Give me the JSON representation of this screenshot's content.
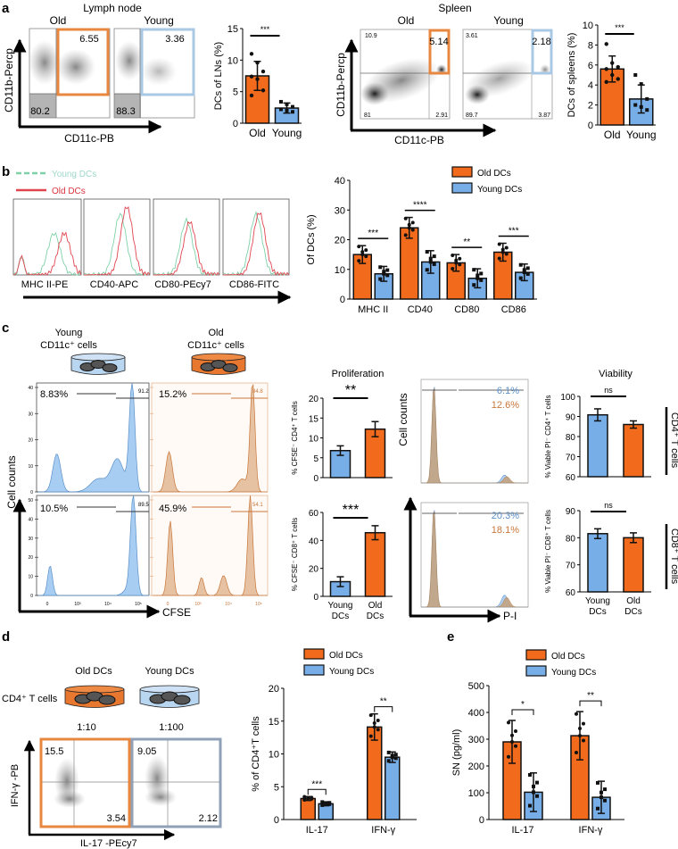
{
  "colors": {
    "old": "#f26a1b",
    "young": "#78aee8",
    "old_gate": "#e8873f",
    "young_gate": "#a9c8e4",
    "young_hist": "#a8cdf2",
    "old_hist": "#e6c1a2",
    "green": "#7fd1a7",
    "red": "#e0454f",
    "grey_gate": "#8fa0b7"
  },
  "panels": {
    "a": {
      "label": "a",
      "lymph": {
        "title": "Lymph node",
        "old": "Old",
        "young": "Young",
        "old_gate": "6.55",
        "old_ll": "80.2",
        "young_gate": "3.36",
        "young_ll": "88.3",
        "ylabel": "CD11b-Percp",
        "xlabel": "CD11c-PB"
      },
      "spleen": {
        "title": "Spleen",
        "old": "Old",
        "young": "Young",
        "old_gate": "5.14",
        "old_ul": "10.9",
        "old_ll": "81",
        "old_lr": "2.91",
        "young_gate": "2.18",
        "young_ul": "3.61",
        "young_ll": "89.7",
        "young_lr": "3.87",
        "ylabel": "CD11b-Percp",
        "xlabel": "CD11c-PB"
      }
    },
    "b": {
      "label": "b",
      "legend_young": "Young DCs",
      "legend_old": "Old DCs",
      "hist_labels": [
        "MHC II-PE",
        "CD40-APC",
        "CD80-PEcy7",
        "CD86-FITC"
      ]
    },
    "c": {
      "label": "c",
      "young_title": "Young",
      "young_sub": "CD11c⁺ cells",
      "old_title": "Old",
      "old_sub": "CD11c⁺ cells",
      "ylabel": "Cell counts",
      "xlabel": "CFSE",
      "top_young_pct": "8.83%",
      "top_young_gate": "91.2",
      "top_old_pct": "15.2%",
      "top_old_gate": "84.8",
      "bot_young_pct": "10.5%",
      "bot_young_gate": "89.5",
      "bot_old_pct": "45.9%",
      "bot_old_gate": "54.1",
      "x_ticks": [
        "0",
        "10³",
        "10⁴",
        "10⁵"
      ],
      "top_y_ticks": [
        "0",
        "10",
        "20",
        "30",
        "40"
      ],
      "bot_y_ticks": [
        "0",
        "10",
        "20",
        "30",
        "40",
        "50"
      ],
      "pi_ylabel": "Cell counts",
      "pi_xlabel": "P-I",
      "pi_top_young": "6.1%",
      "pi_top_old": "12.6%",
      "pi_bot_young": "20.3%",
      "pi_bot_old": "18.1%",
      "cd4_side": "CD4⁺ T cells",
      "cd8_side": "CD8⁺ T cells"
    },
    "d": {
      "label": "d",
      "old_dish": "Old DCs",
      "young_dish": "Young DCs",
      "cd4": "CD4⁺ T cells",
      "ratio_old": "1:10",
      "ratio_young": "1:100",
      "old_ul": "15.5",
      "old_lr": "3.54",
      "young_ul": "9.05",
      "young_lr": "2.12",
      "ylabel": "IFN-γ -PB",
      "xlabel": "IL-17 -PEcy7"
    },
    "e": {
      "label": "e"
    }
  },
  "chart_data": [
    {
      "id": "a_ln",
      "type": "bar",
      "title": "",
      "ylabel": "DCs of LNs (%)",
      "categories": [
        "Old",
        "Young"
      ],
      "values": [
        7.5,
        2.4
      ],
      "errors": [
        2.3,
        0.8
      ],
      "ylim": [
        0,
        15
      ],
      "yticks": [
        0,
        5,
        10,
        15
      ],
      "sig": "***",
      "points": [
        [
          11.0,
          9.6,
          8.2,
          7.4,
          7.0,
          5.2,
          4.4
        ],
        [
          3.4,
          3.0,
          2.6,
          2.2,
          2.0,
          1.8
        ]
      ]
    },
    {
      "id": "a_spleen",
      "type": "bar",
      "ylabel": "DCs of spleens (%)",
      "categories": [
        "Old",
        "Young"
      ],
      "values": [
        5.6,
        2.6
      ],
      "errors": [
        1.3,
        1.4
      ],
      "ylim": [
        0,
        10
      ],
      "yticks": [
        0,
        2,
        4,
        6,
        8,
        10
      ],
      "sig": "***",
      "points": [
        [
          8.1,
          6.2,
          5.8,
          5.6,
          5.0,
          4.6,
          4.3
        ],
        [
          5.0,
          4.1,
          2.6,
          2.0,
          1.8,
          1.5
        ]
      ]
    },
    {
      "id": "b_markers",
      "type": "bar",
      "ylabel": "Of DCs  (%)",
      "categories": [
        "MHC II",
        "CD40",
        "CD80",
        "CD86"
      ],
      "ylim": [
        0,
        40
      ],
      "yticks": [
        0,
        10,
        20,
        30,
        40
      ],
      "legend": [
        "Old DCs",
        "Young DCs"
      ],
      "legend_position": "top-right",
      "series": [
        {
          "name": "Old DCs",
          "values": [
            15.0,
            24.0,
            12.2,
            15.8
          ],
          "errors": [
            3.0,
            3.5,
            2.8,
            3.0
          ]
        },
        {
          "name": "Young DCs",
          "values": [
            8.5,
            12.5,
            7.0,
            9.0
          ],
          "errors": [
            2.5,
            3.8,
            3.2,
            2.8
          ]
        }
      ],
      "sig": [
        "***",
        "****",
        "**",
        "***"
      ]
    },
    {
      "id": "c_prolif_cd4",
      "type": "bar",
      "title": "Proliferation",
      "ylabel": "% CFSE⁻ CD4⁺ T cells",
      "categories": [
        "Young DCs",
        "Old DCs"
      ],
      "values": [
        6.8,
        12.2
      ],
      "errors": [
        1.2,
        1.9
      ],
      "ylim": [
        0,
        20
      ],
      "yticks": [
        0,
        5,
        10,
        15,
        20
      ],
      "sig": "**",
      "order": [
        "young",
        "old"
      ]
    },
    {
      "id": "c_prolif_cd8",
      "type": "bar",
      "ylabel": "% CFSE⁻ CD8⁺ T cells",
      "categories": [
        "Young DCs",
        "Old DCs"
      ],
      "values": [
        10.5,
        45.5
      ],
      "errors": [
        3.5,
        5.0
      ],
      "ylim": [
        0,
        60
      ],
      "yticks": [
        0,
        20,
        40,
        60
      ],
      "sig": "***",
      "order": [
        "young",
        "old"
      ]
    },
    {
      "id": "c_viab_cd4",
      "type": "bar",
      "title": "Viability",
      "ylabel": "% Viable PI⁻ CD4⁺ T cells",
      "categories": [
        "Young DCs",
        "Old DCs"
      ],
      "values": [
        90.8,
        86.0
      ],
      "errors": [
        3.0,
        1.8
      ],
      "ylim": [
        60,
        100
      ],
      "yticks": [
        60,
        70,
        80,
        90,
        100
      ],
      "sig": "ns",
      "order": [
        "young",
        "old"
      ]
    },
    {
      "id": "c_viab_cd8",
      "type": "bar",
      "ylabel": "% Viable PI⁻ CD8⁺ T cells",
      "categories": [
        "Young DCs",
        "Old DCs"
      ],
      "values": [
        81.5,
        80.0
      ],
      "errors": [
        1.8,
        1.8
      ],
      "ylim": [
        60,
        90
      ],
      "yticks": [
        60,
        70,
        80,
        90
      ],
      "sig": "ns",
      "order": [
        "young",
        "old"
      ]
    },
    {
      "id": "d_cytokine",
      "type": "bar",
      "ylabel": "% of CD4⁺T cells",
      "categories": [
        "IL-17",
        "IFN-γ"
      ],
      "ylim": [
        0,
        20
      ],
      "yticks": [
        0,
        5,
        10,
        15,
        20
      ],
      "legend": [
        "Old DCs",
        "Young DCs"
      ],
      "legend_position": "top",
      "series": [
        {
          "name": "Old DCs",
          "values": [
            3.2,
            14.1
          ],
          "errors": [
            0.3,
            2.0
          ]
        },
        {
          "name": "Young DCs",
          "values": [
            2.4,
            9.5
          ],
          "errors": [
            0.3,
            0.8
          ]
        }
      ],
      "sig": [
        "***",
        "**"
      ]
    },
    {
      "id": "e_sn",
      "type": "bar",
      "ylabel": "SN (pg/ml)",
      "categories": [
        "IL-17",
        "IFN-γ"
      ],
      "ylim": [
        0,
        500
      ],
      "yticks": [
        0,
        100,
        200,
        300,
        400,
        500
      ],
      "legend": [
        "Old DCs",
        "Young DCs"
      ],
      "legend_position": "top",
      "series": [
        {
          "name": "Old DCs",
          "values": [
            290,
            313
          ],
          "errors": [
            80,
            90
          ]
        },
        {
          "name": "Young DCs",
          "values": [
            102,
            83
          ],
          "errors": [
            72,
            60
          ]
        }
      ],
      "sig": [
        "*",
        "**"
      ]
    }
  ]
}
